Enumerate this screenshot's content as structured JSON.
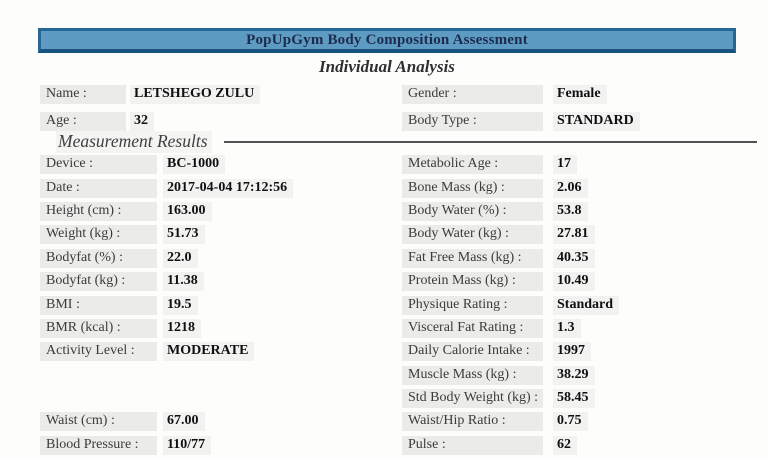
{
  "header": {
    "title": "PopUpGym Body Composition Assessment",
    "subtitle": "Individual Analysis"
  },
  "sections": {
    "measurement_results": "Measurement Results"
  },
  "profile": {
    "left": [
      {
        "label": "Name :",
        "value": "LETSHEGO ZULU"
      },
      {
        "label": "Age :",
        "value": "32"
      }
    ],
    "right": [
      {
        "label": "Gender :",
        "value": "Female"
      },
      {
        "label": "Body Type :",
        "value": "STANDARD"
      }
    ]
  },
  "measurements": {
    "left": [
      {
        "label": "Device :",
        "value": "BC-1000"
      },
      {
        "label": "Date :",
        "value": "2017-04-04 17:12:56"
      },
      {
        "label": "Height (cm) :",
        "value": "163.00"
      },
      {
        "label": "Weight (kg) :",
        "value": "51.73"
      },
      {
        "label": "Bodyfat (%) :",
        "value": "22.0"
      },
      {
        "label": "Bodyfat (kg) :",
        "value": "11.38"
      },
      {
        "label": "BMI :",
        "value": "19.5"
      },
      {
        "label": "BMR (kcal) :",
        "value": "1218"
      },
      {
        "label": "Activity Level :",
        "value": "MODERATE"
      }
    ],
    "left_bottom": [
      {
        "label": "Waist (cm) :",
        "value": "67.00"
      },
      {
        "label": "Blood Pressure :",
        "value": "110/77"
      }
    ],
    "right": [
      {
        "label": "Metabolic Age :",
        "value": "17"
      },
      {
        "label": "Bone Mass (kg) :",
        "value": "2.06"
      },
      {
        "label": "Body Water (%) :",
        "value": "53.8"
      },
      {
        "label": "Body Water (kg) :",
        "value": "27.81"
      },
      {
        "label": "Fat Free Mass (kg) :",
        "value": "40.35"
      },
      {
        "label": "Protein Mass (kg) :",
        "value": "10.49"
      },
      {
        "label": "Physique Rating :",
        "value": "Standard"
      },
      {
        "label": "Visceral Fat Rating :",
        "value": "1.3"
      },
      {
        "label": "Daily Calorie Intake :",
        "value": "1997"
      },
      {
        "label": "Muscle Mass (kg) :",
        "value": "38.29"
      },
      {
        "label": "Std Body Weight (kg) :",
        "value": "58.45"
      },
      {
        "label": "Waist/Hip Ratio :",
        "value": "0.75"
      },
      {
        "label": "Pulse :",
        "value": "62"
      }
    ]
  },
  "colors": {
    "title_bar_fill": "#5d9bc2",
    "title_bar_border_top": "#266795",
    "title_bar_border_bottom": "#16537f",
    "title_text": "#1d2c4e",
    "label_background": "#ebebe9",
    "value_background": "#f2f2f0",
    "section_rule": "#525254"
  }
}
